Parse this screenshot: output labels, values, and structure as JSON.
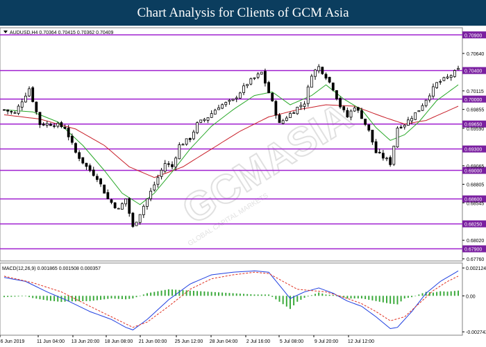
{
  "banner": {
    "title": "Chart Analysis for Clients of GCM Asia"
  },
  "colors": {
    "banner_bg": "#0b3d5e",
    "level_line": "#a020d0",
    "candle": "#000000",
    "ma_fast": "#28a828",
    "ma_slow": "#c81e28",
    "macd_line": "#1f3fe0",
    "macd_signal": "#e03020",
    "macd_hist": "#3caa3c",
    "label_bg": "#7a1fa0",
    "grid": "#cccccc"
  },
  "watermark": {
    "text": "GCMASIA",
    "subtext": "GLOBAL CAPITAL MARKETS"
  },
  "chart_data": [
    {
      "type": "candlestick",
      "symbol_header": "AUDUSD,H4  0.70364 0.70415 0.70362 0.70409",
      "symbol_icon": "triangle-down-icon",
      "ylim": [
        0.6773,
        0.71
      ],
      "y_ticks": [
        {
          "value": 0.7064,
          "label": "0.70640"
        },
        {
          "value": 0.70115,
          "label": "0.70115"
        },
        {
          "value": 0.69855,
          "label": "0.69855"
        },
        {
          "value": 0.6959,
          "label": "0.69590"
        },
        {
          "value": 0.69065,
          "label": "0.69065"
        },
        {
          "value": 0.68805,
          "label": "0.68805"
        },
        {
          "value": 0.68545,
          "label": "0.68545"
        },
        {
          "value": 0.6802,
          "label": "0.68020"
        },
        {
          "value": 0.6776,
          "label": "0.67760"
        }
      ],
      "levels": [
        0.709,
        0.704,
        0.7,
        0.6965,
        0.693,
        0.69,
        0.686,
        0.6825,
        0.679
      ],
      "level_labels": [
        "0.70900",
        "0.70400",
        "0.70000",
        "0.69650",
        "0.69300",
        "0.69000",
        "0.68600",
        "0.68250",
        "0.67900"
      ],
      "x_labels": [
        "6 Jun 2019",
        "11 Jun 04:00",
        "13 Jun 20:00",
        "18 Jun 08:00",
        "21 Jun 00:00",
        "25 Jun 12:00",
        "28 Jun 04:00",
        "2 Jul 16:00",
        "5 Jul 08:00",
        "9 Jul 20:00",
        "12 Jul 12:00"
      ],
      "close_path": [
        [
          0,
          0.6985
        ],
        [
          3,
          0.698
        ],
        [
          5,
          0.6998
        ],
        [
          7,
          0.7015
        ],
        [
          10,
          0.6965
        ],
        [
          14,
          0.6965
        ],
        [
          17,
          0.696
        ],
        [
          20,
          0.6925
        ],
        [
          23,
          0.6905
        ],
        [
          26,
          0.689
        ],
        [
          29,
          0.686
        ],
        [
          32,
          0.6845
        ],
        [
          34,
          0.686
        ],
        [
          36,
          0.682
        ],
        [
          38,
          0.684
        ],
        [
          40,
          0.686
        ],
        [
          42,
          0.688
        ],
        [
          45,
          0.691
        ],
        [
          47,
          0.6905
        ],
        [
          49,
          0.6935
        ],
        [
          52,
          0.6945
        ],
        [
          54,
          0.6965
        ],
        [
          57,
          0.6975
        ],
        [
          60,
          0.699
        ],
        [
          64,
          0.6998
        ],
        [
          68,
          0.7022
        ],
        [
          72,
          0.7037
        ],
        [
          75,
          0.6995
        ],
        [
          77,
          0.6965
        ],
        [
          79,
          0.6975
        ],
        [
          82,
          0.6988
        ],
        [
          84,
          0.6995
        ],
        [
          86,
          0.7035
        ],
        [
          88,
          0.7045
        ],
        [
          90,
          0.7032
        ],
        [
          92,
          0.7015
        ],
        [
          94,
          0.699
        ],
        [
          96,
          0.6975
        ],
        [
          98,
          0.699
        ],
        [
          100,
          0.6975
        ],
        [
          102,
          0.6955
        ],
        [
          104,
          0.6925
        ],
        [
          107,
          0.6915
        ],
        [
          108,
          0.691
        ],
        [
          110,
          0.696
        ],
        [
          112,
          0.6965
        ],
        [
          114,
          0.6975
        ],
        [
          116,
          0.6985
        ],
        [
          118,
          0.7
        ],
        [
          121,
          0.7022
        ],
        [
          124,
          0.703
        ],
        [
          127,
          0.7041
        ]
      ],
      "ma_fast_path": [
        [
          0,
          0.6985
        ],
        [
          8,
          0.6982
        ],
        [
          15,
          0.6968
        ],
        [
          22,
          0.6935
        ],
        [
          28,
          0.69
        ],
        [
          33,
          0.6868
        ],
        [
          38,
          0.6852
        ],
        [
          42,
          0.6868
        ],
        [
          47,
          0.6898
        ],
        [
          52,
          0.693
        ],
        [
          58,
          0.6962
        ],
        [
          64,
          0.6985
        ],
        [
          70,
          0.7005
        ],
        [
          75,
          0.701
        ],
        [
          80,
          0.6992
        ],
        [
          86,
          0.7005
        ],
        [
          90,
          0.702
        ],
        [
          95,
          0.7
        ],
        [
          100,
          0.6985
        ],
        [
          104,
          0.696
        ],
        [
          108,
          0.6942
        ],
        [
          112,
          0.695
        ],
        [
          116,
          0.6968
        ],
        [
          121,
          0.6998
        ],
        [
          127,
          0.702
        ]
      ],
      "ma_slow_path": [
        [
          0,
          0.6978
        ],
        [
          10,
          0.6972
        ],
        [
          20,
          0.6958
        ],
        [
          28,
          0.6935
        ],
        [
          35,
          0.6905
        ],
        [
          42,
          0.689
        ],
        [
          50,
          0.6905
        ],
        [
          58,
          0.693
        ],
        [
          66,
          0.6955
        ],
        [
          74,
          0.6975
        ],
        [
          82,
          0.6985
        ],
        [
          90,
          0.6992
        ],
        [
          98,
          0.699
        ],
        [
          106,
          0.6975
        ],
        [
          112,
          0.6965
        ],
        [
          118,
          0.697
        ],
        [
          127,
          0.699
        ]
      ]
    },
    {
      "type": "macd",
      "header": "MACD(12,26,9) 0.001865 0.001508 0.000357",
      "params": [
        12,
        26,
        9
      ],
      "values": {
        "macd": 0.001865,
        "signal": 0.001508,
        "histogram": 0.000357
      },
      "ylim": [
        -0.003,
        0.0025
      ],
      "y_ticks": [
        {
          "value": 0.002124,
          "label": "0.002124"
        },
        {
          "value": 0.0,
          "label": "0.00"
        },
        {
          "value": -0.002743,
          "label": "-0.002743"
        }
      ],
      "macd_path": [
        [
          0,
          0.0014
        ],
        [
          6,
          0.0011
        ],
        [
          12,
          0.0003
        ],
        [
          18,
          -0.0004
        ],
        [
          24,
          -0.0012
        ],
        [
          30,
          -0.0018
        ],
        [
          34,
          -0.0024
        ],
        [
          36,
          -0.0026
        ],
        [
          40,
          -0.0018
        ],
        [
          46,
          -0.0003
        ],
        [
          52,
          0.0009
        ],
        [
          58,
          0.0016
        ],
        [
          64,
          0.0018
        ],
        [
          70,
          0.0019
        ],
        [
          74,
          0.0018
        ],
        [
          77,
          0.0008
        ],
        [
          80,
          -0.0002
        ],
        [
          84,
          0.0003
        ],
        [
          88,
          0.0006
        ],
        [
          92,
          0.0002
        ],
        [
          96,
          -0.0004
        ],
        [
          100,
          -0.0008
        ],
        [
          104,
          -0.0016
        ],
        [
          108,
          -0.0025
        ],
        [
          110,
          -0.0024
        ],
        [
          114,
          -0.0012
        ],
        [
          118,
          0.0002
        ],
        [
          122,
          0.0011
        ],
        [
          127,
          0.0019
        ]
      ],
      "signal_path": [
        [
          0,
          0.0015
        ],
        [
          8,
          0.001
        ],
        [
          16,
          0.0003
        ],
        [
          24,
          -0.0008
        ],
        [
          30,
          -0.0016
        ],
        [
          36,
          -0.0024
        ],
        [
          40,
          -0.002
        ],
        [
          46,
          -0.0008
        ],
        [
          52,
          0.0005
        ],
        [
          58,
          0.0013
        ],
        [
          64,
          0.0016
        ],
        [
          70,
          0.0018
        ],
        [
          74,
          0.0017
        ],
        [
          78,
          0.0011
        ],
        [
          82,
          0.0005
        ],
        [
          86,
          0.0004
        ],
        [
          90,
          0.0003
        ],
        [
          96,
          -0.0002
        ],
        [
          100,
          -0.0006
        ],
        [
          104,
          -0.0012
        ],
        [
          108,
          -0.0019
        ],
        [
          112,
          -0.0016
        ],
        [
          116,
          -0.0006
        ],
        [
          120,
          0.0004
        ],
        [
          124,
          0.0011
        ],
        [
          127,
          0.0015
        ]
      ]
    }
  ]
}
